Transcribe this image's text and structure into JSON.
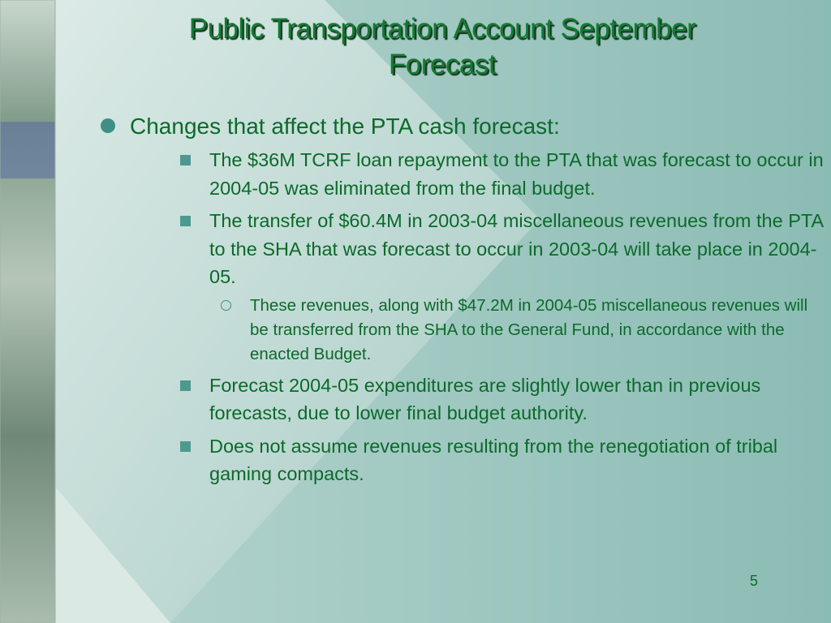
{
  "title": "Public Transportation Account September Forecast",
  "bullets": [
    {
      "text": "Changes that affect the PTA cash forecast:",
      "children": [
        {
          "text": "The $36M TCRF loan repayment to the PTA that was forecast to occur in 2004-05 was eliminated from the final budget."
        },
        {
          "text": "The transfer of $60.4M in 2003-04 miscellaneous revenues from the PTA to the SHA that was forecast to occur in 2003-04 will take place in 2004-05.",
          "children": [
            {
              "text": "These revenues, along with $47.2M in 2004-05 miscellaneous revenues will be transferred from the SHA to the General Fund, in accordance with the enacted Budget."
            }
          ]
        },
        {
          "text": "Forecast 2004-05 expenditures are slightly lower than in previous forecasts, due to lower final budget authority."
        },
        {
          "text": "Does not assume revenues resulting from the renegotiation of tribal gaming compacts."
        }
      ]
    }
  ],
  "page_number": "5"
}
